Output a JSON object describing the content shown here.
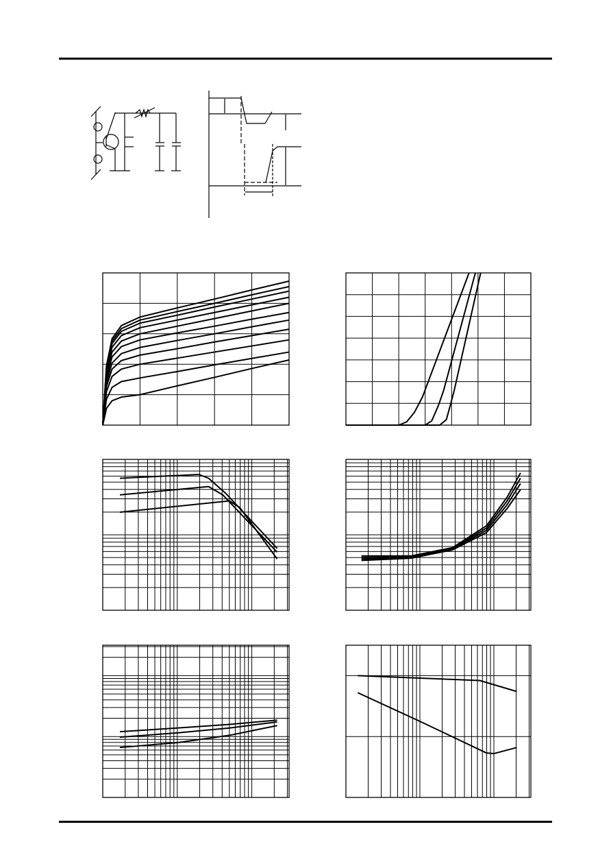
{
  "colors": {
    "ink": "#000000",
    "paper": "#ffffff"
  },
  "chart_data": [
    {
      "type": "line",
      "xscale": "linear",
      "yscale": "linear",
      "xlim": [
        0,
        5
      ],
      "ylim": [
        0,
        5
      ],
      "grid": true,
      "series": [
        {
          "points": [
            [
              0,
              0
            ],
            [
              0.1,
              1.95
            ],
            [
              0.25,
              2.84
            ],
            [
              0.5,
              3.27
            ],
            [
              1,
              3.55
            ],
            [
              2,
              3.85
            ],
            [
              3,
              4.14
            ],
            [
              4,
              4.44
            ],
            [
              5,
              4.73
            ]
          ]
        },
        {
          "points": [
            [
              0,
              0
            ],
            [
              0.1,
              1.9
            ],
            [
              0.25,
              2.76
            ],
            [
              0.5,
              3.17
            ],
            [
              1,
              3.45
            ],
            [
              2,
              3.73
            ],
            [
              3,
              4.0
            ],
            [
              4,
              4.28
            ],
            [
              5,
              4.55
            ]
          ]
        },
        {
          "points": [
            [
              0,
              0
            ],
            [
              0.1,
              1.84
            ],
            [
              0.25,
              2.68
            ],
            [
              0.5,
              3.08
            ],
            [
              1,
              3.35
            ],
            [
              2,
              3.61
            ],
            [
              3,
              3.88
            ],
            [
              4,
              4.14
            ],
            [
              5,
              4.4
            ]
          ]
        },
        {
          "points": [
            [
              0,
              0
            ],
            [
              0.1,
              1.76
            ],
            [
              0.25,
              2.56
            ],
            [
              0.5,
              2.94
            ],
            [
              1,
              3.2
            ],
            [
              2,
              3.45
            ],
            [
              3,
              3.7
            ],
            [
              4,
              3.95
            ],
            [
              5,
              4.2
            ]
          ]
        },
        {
          "points": [
            [
              0,
              0
            ],
            [
              0.1,
              1.65
            ],
            [
              0.25,
              2.4
            ],
            [
              0.5,
              2.76
            ],
            [
              1,
              3.0
            ],
            [
              2,
              3.25
            ],
            [
              3,
              3.5
            ],
            [
              4,
              3.75
            ],
            [
              5,
              4.0
            ]
          ]
        },
        {
          "points": [
            [
              0,
              0
            ],
            [
              0.1,
              1.54
            ],
            [
              0.25,
              2.24
            ],
            [
              0.5,
              2.58
            ],
            [
              1,
              2.8
            ],
            [
              2,
              3.03
            ],
            [
              3,
              3.25
            ],
            [
              4,
              3.48
            ],
            [
              5,
              3.7
            ]
          ]
        },
        {
          "points": [
            [
              0,
              0
            ],
            [
              0.1,
              1.4
            ],
            [
              0.25,
              2.04
            ],
            [
              0.5,
              2.35
            ],
            [
              1,
              2.55
            ],
            [
              2,
              2.78
            ],
            [
              3,
              3.0
            ],
            [
              4,
              3.23
            ],
            [
              5,
              3.45
            ]
          ]
        },
        {
          "points": [
            [
              0,
              0
            ],
            [
              0.1,
              1.27
            ],
            [
              0.25,
              1.84
            ],
            [
              0.5,
              2.12
            ],
            [
              1,
              2.3
            ],
            [
              2,
              2.51
            ],
            [
              3,
              2.73
            ],
            [
              4,
              2.94
            ],
            [
              5,
              3.15
            ]
          ]
        },
        {
          "points": [
            [
              0,
              0
            ],
            [
              0.1,
              1.1
            ],
            [
              0.25,
              1.6
            ],
            [
              0.5,
              1.84
            ],
            [
              1,
              2.0
            ],
            [
              2,
              2.2
            ],
            [
              3,
              2.4
            ],
            [
              4,
              2.6
            ],
            [
              5,
              2.8
            ]
          ]
        },
        {
          "points": [
            [
              0,
              0
            ],
            [
              0.1,
              0.85
            ],
            [
              0.25,
              1.24
            ],
            [
              0.5,
              1.43
            ],
            [
              1,
              1.55
            ],
            [
              2,
              1.76
            ],
            [
              3,
              1.98
            ],
            [
              4,
              2.19
            ],
            [
              5,
              2.4
            ]
          ]
        },
        {
          "points": [
            [
              0,
              0
            ],
            [
              0.1,
              0.55
            ],
            [
              0.25,
              0.8
            ],
            [
              0.5,
              0.92
            ],
            [
              1,
              1.0
            ],
            [
              2,
              1.29
            ],
            [
              3,
              1.57
            ],
            [
              4,
              1.86
            ],
            [
              5,
              2.14
            ]
          ]
        }
      ]
    },
    {
      "type": "line",
      "xscale": "linear",
      "yscale": "linear",
      "xlim": [
        0,
        7
      ],
      "ylim": [
        0,
        7
      ],
      "grid": true,
      "series": [
        {
          "points": [
            [
              0,
              0
            ],
            [
              2.0,
              0
            ],
            [
              2.3,
              0.15
            ],
            [
              2.6,
              0.6
            ],
            [
              2.9,
              1.3
            ],
            [
              4.66,
              7
            ]
          ]
        },
        {
          "points": [
            [
              0,
              0
            ],
            [
              3.0,
              0
            ],
            [
              3.25,
              0.2
            ],
            [
              3.5,
              0.9
            ],
            [
              3.7,
              1.6
            ],
            [
              4.9,
              7
            ]
          ]
        },
        {
          "points": [
            [
              0,
              0
            ],
            [
              3.55,
              0
            ],
            [
              3.8,
              0.25
            ],
            [
              3.95,
              0.9
            ],
            [
              4.1,
              1.6
            ],
            [
              5.1,
              7
            ]
          ]
        }
      ]
    },
    {
      "type": "line",
      "xscale": "log",
      "yscale": "log",
      "xlim_decades": [
        0,
        2.5
      ],
      "ylim_decades": [
        0,
        2
      ],
      "grid": true,
      "series": [
        {
          "points": [
            [
              0.23,
              1.75
            ],
            [
              1.29,
              1.8
            ],
            [
              1.42,
              1.75
            ],
            [
              1.65,
              1.55
            ],
            [
              2.34,
              0.82
            ]
          ]
        },
        {
          "points": [
            [
              0.23,
              1.53
            ],
            [
              1.42,
              1.64
            ],
            [
              1.61,
              1.53
            ],
            [
              2.34,
              0.77
            ]
          ]
        },
        {
          "points": [
            [
              0.23,
              1.3
            ],
            [
              1.7,
              1.45
            ],
            [
              1.84,
              1.36
            ],
            [
              2.34,
              0.68
            ]
          ]
        }
      ]
    },
    {
      "type": "line",
      "xscale": "log",
      "yscale": "log",
      "xlim_decades": [
        0,
        2.5
      ],
      "ylim_decades": [
        0,
        2
      ],
      "grid": true,
      "series": [
        {
          "points": [
            [
              0.21,
              0.72
            ],
            [
              0.88,
              0.72
            ],
            [
              1.44,
              0.83
            ],
            [
              1.9,
              1.12
            ],
            [
              2.18,
              1.5
            ],
            [
              2.36,
              1.82
            ]
          ]
        },
        {
          "points": [
            [
              0.21,
              0.7
            ],
            [
              0.88,
              0.71
            ],
            [
              1.44,
              0.82
            ],
            [
              1.9,
              1.09
            ],
            [
              2.18,
              1.45
            ],
            [
              2.36,
              1.75
            ]
          ]
        },
        {
          "points": [
            [
              0.21,
              0.68
            ],
            [
              0.88,
              0.7
            ],
            [
              1.44,
              0.81
            ],
            [
              1.9,
              1.06
            ],
            [
              2.18,
              1.4
            ],
            [
              2.36,
              1.68
            ]
          ]
        },
        {
          "points": [
            [
              0.21,
              0.66
            ],
            [
              0.88,
              0.69
            ],
            [
              1.44,
              0.8
            ],
            [
              1.9,
              1.03
            ],
            [
              2.18,
              1.35
            ],
            [
              2.36,
              1.6
            ]
          ]
        }
      ]
    },
    {
      "type": "line",
      "xscale": "log",
      "yscale": "log",
      "xlim_decades": [
        0,
        2.5
      ],
      "ylim_decades": [
        0,
        2.5
      ],
      "grid": true,
      "series": [
        {
          "points": [
            [
              0.23,
              1.08
            ],
            [
              1.0,
              1.14
            ],
            [
              1.7,
              1.2
            ],
            [
              2.34,
              1.27
            ]
          ]
        },
        {
          "points": [
            [
              0.23,
              0.99
            ],
            [
              1.0,
              1.06
            ],
            [
              1.7,
              1.14
            ],
            [
              2.34,
              1.24
            ]
          ]
        },
        {
          "points": [
            [
              0.23,
              0.82
            ],
            [
              1.0,
              0.9
            ],
            [
              1.7,
              1.02
            ],
            [
              2.34,
              1.18
            ]
          ]
        }
      ]
    },
    {
      "type": "line",
      "xscale": "log",
      "yscale": "linear",
      "xlim_decades": [
        0,
        2.5
      ],
      "ylim": [
        0,
        2.5
      ],
      "grid": true,
      "series": [
        {
          "points": [
            [
              0.16,
              2.0
            ],
            [
              1.0,
              1.96
            ],
            [
              1.81,
              1.92
            ],
            [
              2.31,
              1.74
            ]
          ]
        },
        {
          "points": [
            [
              0.16,
              1.72
            ],
            [
              1.0,
              1.25
            ],
            [
              1.9,
              0.73
            ],
            [
              2.0,
              0.72
            ],
            [
              2.31,
              0.82
            ]
          ]
        }
      ]
    }
  ]
}
